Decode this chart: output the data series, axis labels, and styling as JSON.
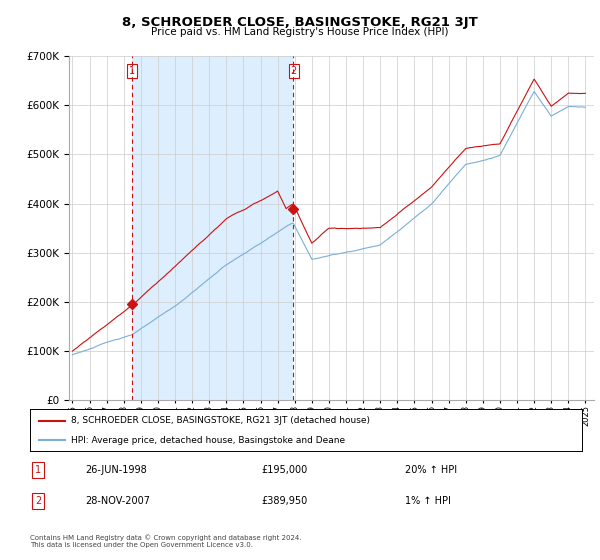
{
  "title": "8, SCHROEDER CLOSE, BASINGSTOKE, RG21 3JT",
  "subtitle": "Price paid vs. HM Land Registry's House Price Index (HPI)",
  "legend_line1": "8, SCHROEDER CLOSE, BASINGSTOKE, RG21 3JT (detached house)",
  "legend_line2": "HPI: Average price, detached house, Basingstoke and Deane",
  "transaction1_label": "1",
  "transaction1_date": "26-JUN-1998",
  "transaction1_price": "£195,000",
  "transaction1_hpi": "20% ↑ HPI",
  "transaction2_label": "2",
  "transaction2_date": "28-NOV-2007",
  "transaction2_price": "£389,950",
  "transaction2_hpi": "1% ↑ HPI",
  "footnote": "Contains HM Land Registry data © Crown copyright and database right 2024.\nThis data is licensed under the Open Government Licence v3.0.",
  "hpi_color": "#7aaed6",
  "price_color": "#cc1111",
  "vline_color": "#cc1111",
  "dot_color": "#cc1111",
  "shade_color": "#ddeeff",
  "ylim_min": 0,
  "ylim_max": 700000,
  "start_year": 1995,
  "end_year": 2025,
  "transaction1_year": 1998.48,
  "transaction2_year": 2007.9,
  "transaction1_value": 195000,
  "transaction2_value": 389950
}
